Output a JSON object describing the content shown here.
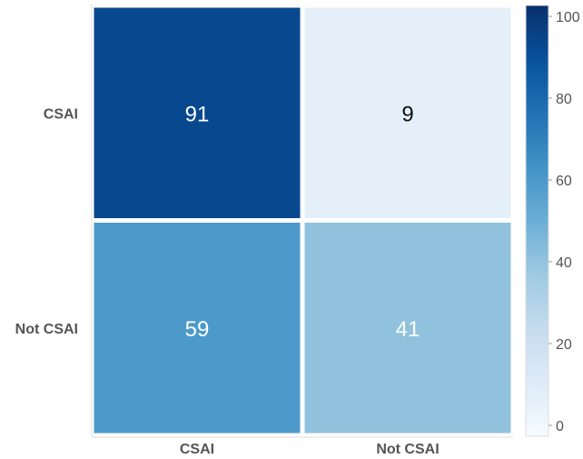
{
  "chart_data": {
    "type": "heatmap",
    "x_categories": [
      "CSAI",
      "Not CSAI"
    ],
    "y_categories": [
      "CSAI",
      "Not CSAI"
    ],
    "values": [
      [
        91,
        9
      ],
      [
        59,
        41
      ]
    ],
    "cell_labels": [
      [
        "91",
        "9"
      ],
      [
        "59",
        "41"
      ]
    ],
    "title": "",
    "xlabel": "",
    "ylabel": "",
    "colormap": "Blues",
    "colorbar": {
      "min": 0,
      "max": 100,
      "ticks": [
        0,
        20,
        40,
        60,
        80,
        100
      ],
      "tick_labels": [
        "0",
        "20",
        "40",
        "60",
        "80",
        "100"
      ]
    },
    "grid": false,
    "legend_position": "right",
    "colors": {
      "low": "#f7fbff",
      "high": "#08306b"
    }
  }
}
